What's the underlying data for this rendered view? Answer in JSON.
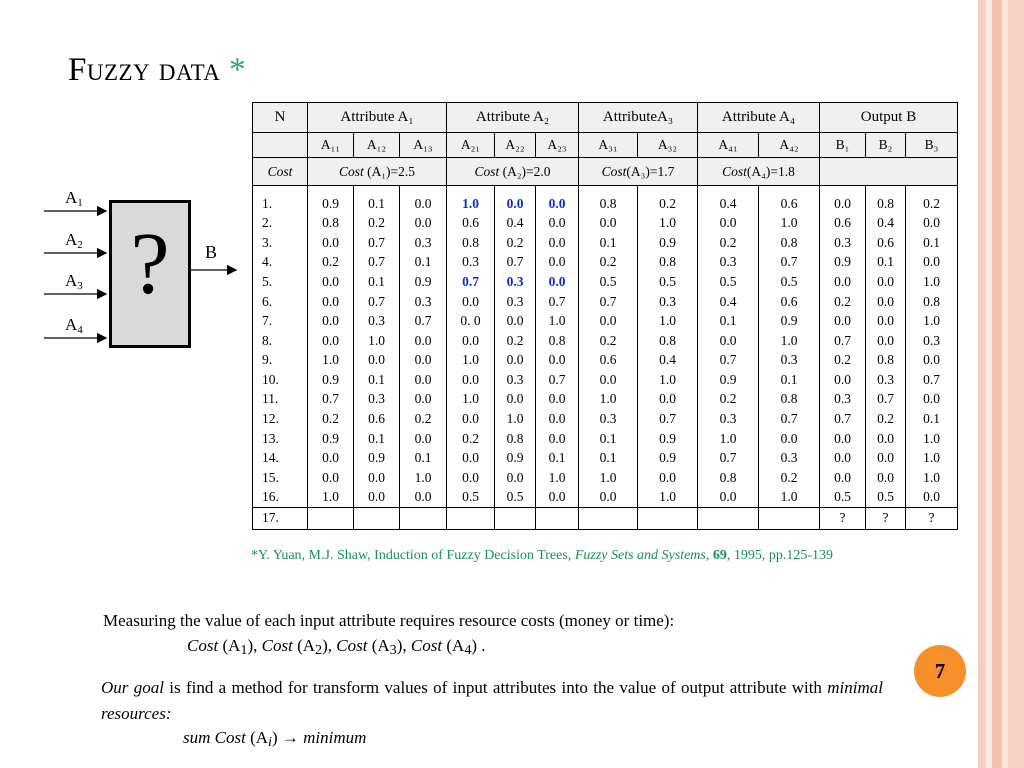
{
  "title": {
    "main": "Fuzzy  data",
    "star": " *"
  },
  "diagram": {
    "inputs": [
      {
        "base": "A",
        "sub": "1"
      },
      {
        "base": "A",
        "sub": "2"
      },
      {
        "base": "A",
        "sub": "3"
      },
      {
        "base": "A",
        "sub": "4"
      }
    ],
    "box_symbol": "?",
    "output": "B"
  },
  "table": {
    "n_header": "N",
    "groups": [
      "Attribute A₁",
      "Attribute A₂",
      "AttributeA₃",
      "Attribute A₄",
      "Output B"
    ],
    "subheaders": [
      "A₁₁",
      "A₁₂",
      "A₁₃",
      "A₂₁",
      "A₂₂",
      "A₂₃",
      "A₃₁",
      "A₃₂",
      "A₄₁",
      "A₄₂",
      "B₁",
      "B₂",
      "B₃"
    ],
    "cost_label": "Cost",
    "costs": [
      {
        "word": "Cost",
        "rest": " (A₁)=2.5"
      },
      {
        "word": "Cost",
        "rest": " (A₂)=2.0"
      },
      {
        "word": "Cost",
        "rest": "(A₃)=1.7"
      },
      {
        "word": "Cost",
        "rest": "(A₄)=1.8"
      }
    ],
    "rows": [
      [
        "1.",
        "0.9",
        "0.1",
        "0.0",
        "1.0",
        "0.0",
        "0.0",
        "0.8",
        "0.2",
        "0.4",
        "0.6",
        "0.0",
        "0.8",
        "0.2"
      ],
      [
        "2.",
        "0.8",
        "0.2",
        "0.0",
        "0.6",
        "0.4",
        "0.0",
        "0.0",
        "1.0",
        "0.0",
        "1.0",
        "0.6",
        "0.4",
        "0.0"
      ],
      [
        "3.",
        "0.0",
        "0.7",
        "0.3",
        "0.8",
        "0.2",
        "0.0",
        "0.1",
        "0.9",
        "0.2",
        "0.8",
        "0.3",
        "0.6",
        "0.1"
      ],
      [
        "4.",
        "0.2",
        "0.7",
        "0.1",
        "0.3",
        "0.7",
        "0.0",
        "0.2",
        "0.8",
        "0.3",
        "0.7",
        "0.9",
        "0.1",
        "0.0"
      ],
      [
        "5.",
        "0.0",
        "0.1",
        "0.9",
        "0.7",
        "0.3",
        "0.0",
        "0.5",
        "0.5",
        "0.5",
        "0.5",
        "0.0",
        "0.0",
        "1.0"
      ],
      [
        "6.",
        "0.0",
        "0.7",
        "0.3",
        "0.0",
        "0.3",
        "0.7",
        "0.7",
        "0.3",
        "0.4",
        "0.6",
        "0.2",
        "0.0",
        "0.8"
      ],
      [
        "7.",
        "0.0",
        "0.3",
        "0.7",
        "0. 0",
        "0.0",
        "1.0",
        "0.0",
        "1.0",
        "0.1",
        "0.9",
        "0.0",
        "0.0",
        "1.0"
      ],
      [
        "8.",
        "0.0",
        "1.0",
        "0.0",
        "0.0",
        "0.2",
        "0.8",
        "0.2",
        "0.8",
        "0.0",
        "1.0",
        "0.7",
        "0.0",
        "0.3"
      ],
      [
        "9.",
        "1.0",
        "0.0",
        "0.0",
        "1.0",
        "0.0",
        "0.0",
        "0.6",
        "0.4",
        "0.7",
        "0.3",
        "0.2",
        "0.8",
        "0.0"
      ],
      [
        "10.",
        "0.9",
        "0.1",
        "0.0",
        "0.0",
        "0.3",
        "0.7",
        "0.0",
        "1.0",
        "0.9",
        "0.1",
        "0.0",
        "0.3",
        "0.7"
      ],
      [
        "11.",
        "0.7",
        "0.3",
        "0.0",
        "1.0",
        "0.0",
        "0.0",
        "1.0",
        "0.0",
        "0.2",
        "0.8",
        "0.3",
        "0.7",
        "0.0"
      ],
      [
        "12.",
        "0.2",
        "0.6",
        "0.2",
        "0.0",
        "1.0",
        "0.0",
        "0.3",
        "0.7",
        "0.3",
        "0.7",
        "0.7",
        "0.2",
        "0.1"
      ],
      [
        "13.",
        "0.9",
        "0.1",
        "0.0",
        "0.2",
        "0.8",
        "0.0",
        "0.1",
        "0.9",
        "1.0",
        "0.0",
        "0.0",
        "0.0",
        "1.0"
      ],
      [
        "14.",
        "0.0",
        "0.9",
        "0.1",
        "0.0",
        "0.9",
        "0.1",
        "0.1",
        "0.9",
        "0.7",
        "0.3",
        "0.0",
        "0.0",
        "1.0"
      ],
      [
        "15.",
        "0.0",
        "0.0",
        "1.0",
        "0.0",
        "0.0",
        "1.0",
        "1.0",
        "0.0",
        "0.8",
        "0.2",
        "0.0",
        "0.0",
        "1.0"
      ],
      [
        "16.",
        "1.0",
        "0.0",
        "0.0",
        "0.5",
        "0.5",
        "0.0",
        "0.0",
        "1.0",
        "0.0",
        "1.0",
        "0.5",
        "0.5",
        "0.0"
      ]
    ],
    "last_row": [
      "17.",
      "",
      "",
      "",
      "",
      "",
      "",
      "",
      "",
      "",
      "",
      "?",
      "?",
      "?"
    ]
  },
  "reference": {
    "star": "*",
    "text1": "Y. Yuan, M.J. Shaw, Induction of Fuzzy Decision Trees, ",
    "journal": "Fuzzy Sets and Systems",
    "sep": ", ",
    "volume": "69",
    "text2": ", 1995, pp.125-139"
  },
  "para1": "Measuring the value of each input attribute requires resource costs (money or time):",
  "costs_line": {
    "word": "Cost",
    "items": [
      {
        "pre": " (A",
        "sub": "1",
        "post": "), "
      },
      {
        "pre": " (A",
        "sub": "2",
        "post": "), "
      },
      {
        "pre": " (A",
        "sub": "3",
        "post": "), "
      },
      {
        "pre": " (A",
        "sub": "4",
        "post": ") ."
      }
    ]
  },
  "goal": {
    "italic": "Our goal",
    "text": " is find a method for transform values of input attributes into the value of output attribute with ",
    "italic2": "minimal resources:"
  },
  "formula": {
    "a": "sum Cost",
    "b": " (A",
    "sub": "i",
    "c": ") → ",
    "d": "minimum"
  },
  "page_number": "7",
  "colors": {
    "title_star": "#2aa36b",
    "reference": "#1a8f56",
    "highlight": "#0a2dd1",
    "badge": "#f78f2b",
    "stripes": "#f4cfc2"
  }
}
